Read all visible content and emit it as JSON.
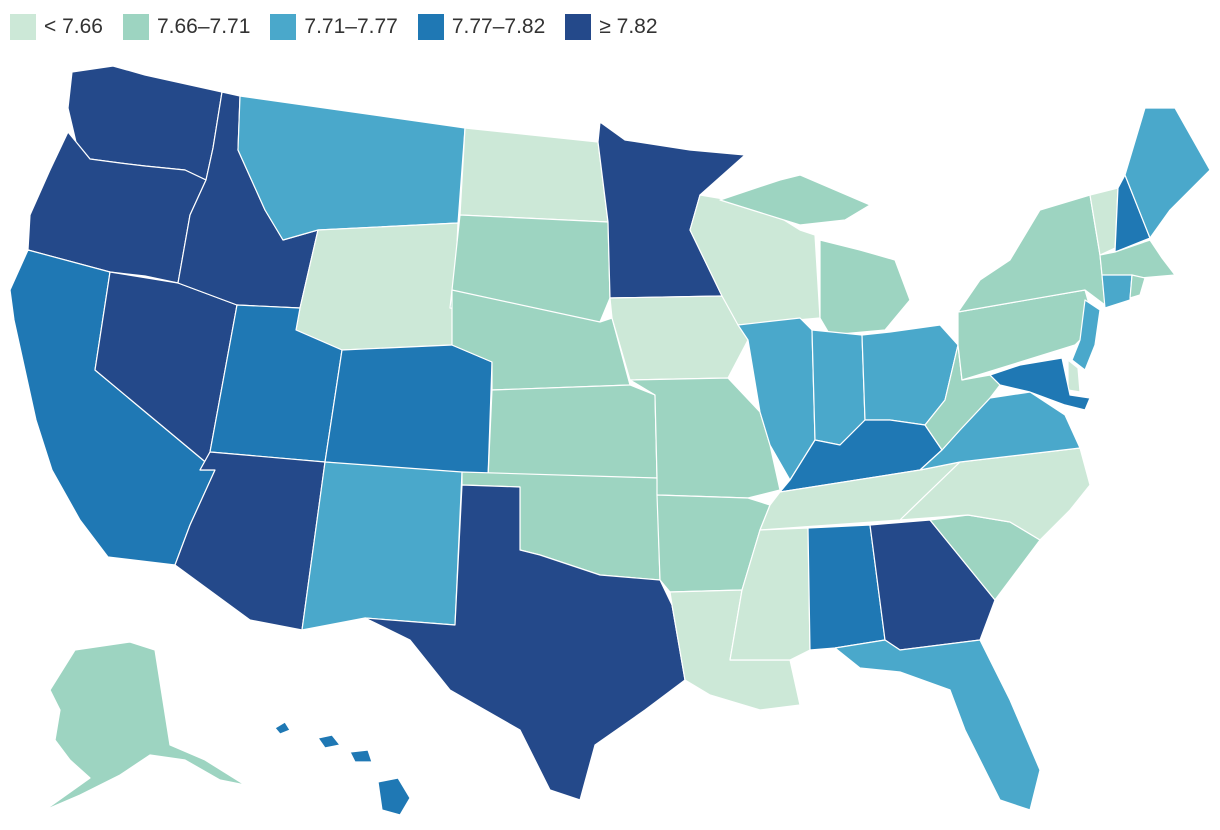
{
  "legend": [
    {
      "label": "< 7.66",
      "color": "#cce8d7"
    },
    {
      "label": "7.66–7.71",
      "color": "#9dd4c1"
    },
    {
      "label": "7.71–7.77",
      "color": "#4aa8cb"
    },
    {
      "label": "7.77–7.82",
      "color": "#1f78b4"
    },
    {
      "label": "≥ 7.82",
      "color": "#24498a"
    }
  ],
  "states": {
    "WA": 4,
    "OR": 4,
    "CA": 3,
    "NV": 4,
    "ID": 4,
    "MT": 2,
    "WY": 0,
    "UT": 3,
    "AZ": 4,
    "CO": 3,
    "NM": 2,
    "ND": 0,
    "SD": 1,
    "NE": 1,
    "KS": 1,
    "OK": 1,
    "TX": 4,
    "MN": 4,
    "IA": 0,
    "MO": 1,
    "AR": 1,
    "LA": 0,
    "WI": 0,
    "IL": 2,
    "MI": 1,
    "IN": 2,
    "OH": 2,
    "KY": 3,
    "TN": 0,
    "MS": 0,
    "AL": 3,
    "GA": 4,
    "FL": 2,
    "SC": 1,
    "NC": 0,
    "VA": 2,
    "WV": 1,
    "PA": 1,
    "NY": 1,
    "VT": 0,
    "NH": 3,
    "ME": 2,
    "MA": 1,
    "RI": 1,
    "CT": 2,
    "NJ": 2,
    "DE": 0,
    "MD": 3,
    "AK": 1,
    "HI": 3
  }
}
